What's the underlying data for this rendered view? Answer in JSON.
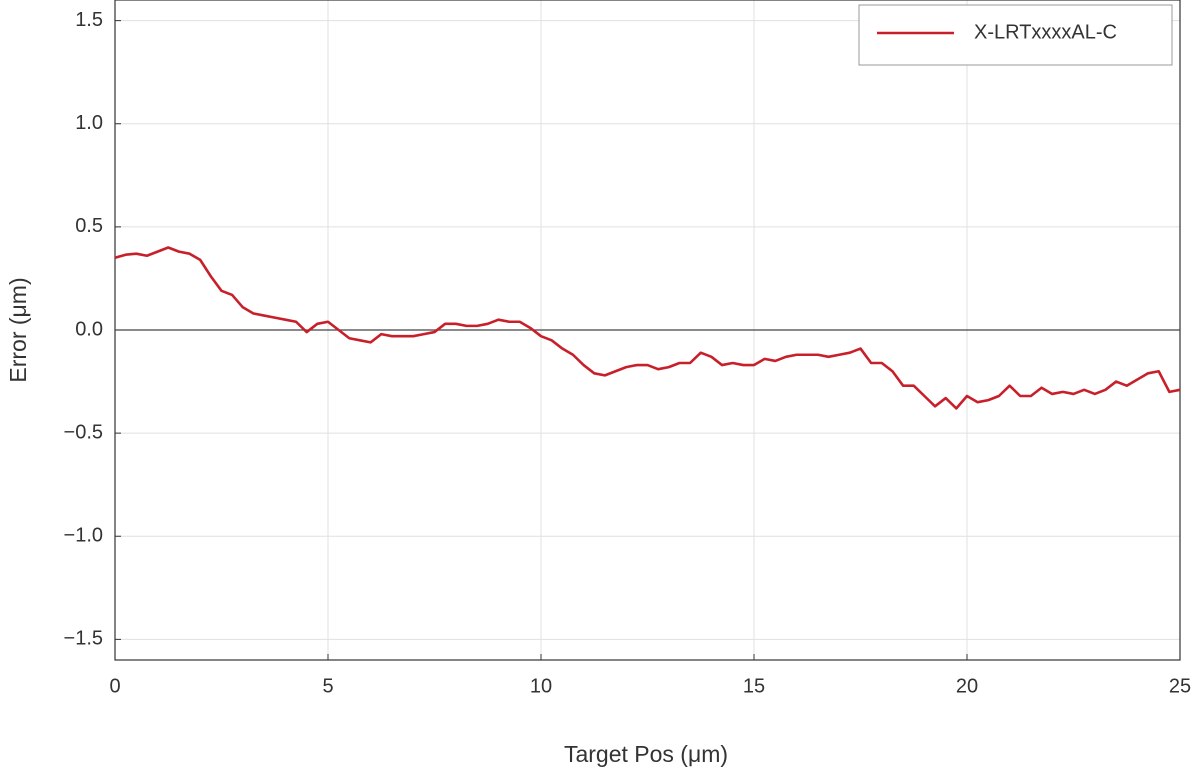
{
  "chart_data": {
    "type": "line",
    "x_label": "Target Pos (μm)",
    "y_label": "Error (μm)",
    "x": [
      0,
      0.25,
      0.5,
      0.75,
      1,
      1.25,
      1.5,
      1.75,
      2,
      2.25,
      2.5,
      2.75,
      3,
      3.25,
      3.5,
      3.75,
      4,
      4.25,
      4.5,
      4.75,
      5,
      5.25,
      5.5,
      5.75,
      6,
      6.25,
      6.5,
      6.75,
      7,
      7.25,
      7.5,
      7.75,
      8,
      8.25,
      8.5,
      8.75,
      9,
      9.25,
      9.5,
      9.75,
      10,
      10.25,
      10.5,
      10.75,
      11,
      11.25,
      11.5,
      11.75,
      12,
      12.25,
      12.5,
      12.75,
      13,
      13.25,
      13.5,
      13.75,
      14,
      14.25,
      14.5,
      14.75,
      15,
      15.25,
      15.5,
      15.75,
      16,
      16.25,
      16.5,
      16.75,
      17,
      17.25,
      17.5,
      17.75,
      18,
      18.25,
      18.5,
      18.75,
      19,
      19.25,
      19.5,
      19.75,
      20,
      20.25,
      20.5,
      20.75,
      21,
      21.25,
      21.5,
      21.75,
      22,
      22.25,
      22.5,
      22.75,
      23,
      23.25,
      23.5,
      23.75,
      24,
      24.25,
      24.5,
      24.75,
      25
    ],
    "series": [
      {
        "name": "X-LRTxxxxAL-C",
        "color": "#c8202a",
        "values": [
          0.35,
          0.365,
          0.37,
          0.36,
          0.38,
          0.4,
          0.38,
          0.37,
          0.34,
          0.26,
          0.19,
          0.17,
          0.11,
          0.08,
          0.07,
          0.06,
          0.05,
          0.04,
          -0.01,
          0.03,
          0.04,
          0,
          -0.04,
          -0.05,
          -0.06,
          -0.02,
          -0.03,
          -0.03,
          -0.03,
          -0.02,
          -0.01,
          0.03,
          0.03,
          0.02,
          0.02,
          0.03,
          0.05,
          0.04,
          0.04,
          0.01,
          -0.03,
          -0.05,
          -0.09,
          -0.12,
          -0.17,
          -0.21,
          -0.22,
          -0.2,
          -0.18,
          -0.17,
          -0.17,
          -0.19,
          -0.18,
          -0.16,
          -0.16,
          -0.11,
          -0.13,
          -0.17,
          -0.16,
          -0.17,
          -0.17,
          -0.14,
          -0.15,
          -0.13,
          -0.12,
          -0.12,
          -0.12,
          -0.13,
          -0.12,
          -0.11,
          -0.09,
          -0.16,
          -0.16,
          -0.2,
          -0.27,
          -0.27,
          -0.32,
          -0.37,
          -0.33,
          -0.38,
          -0.32,
          -0.35,
          -0.34,
          -0.32,
          -0.27,
          -0.32,
          -0.32,
          -0.28,
          -0.31,
          -0.3,
          -0.31,
          -0.29,
          -0.31,
          -0.29,
          -0.25,
          -0.27,
          -0.24,
          -0.21,
          -0.2,
          -0.3,
          -0.29
        ]
      }
    ],
    "xlim": [
      0,
      25
    ],
    "xticks": [
      0,
      5,
      10,
      15,
      20,
      25
    ],
    "ylim": [
      -1.6,
      1.6
    ],
    "yticks": [
      {
        "value": -1.5,
        "label": "−1.5"
      },
      {
        "value": -1,
        "label": "−1.0"
      },
      {
        "value": -0.5,
        "label": "−0.5"
      },
      {
        "value": 0,
        "label": "0.0"
      },
      0.5,
      {
        "value": 1,
        "label": "1.0"
      },
      1.5
    ],
    "grid": true,
    "zero_line": true,
    "legend": "upper right"
  }
}
